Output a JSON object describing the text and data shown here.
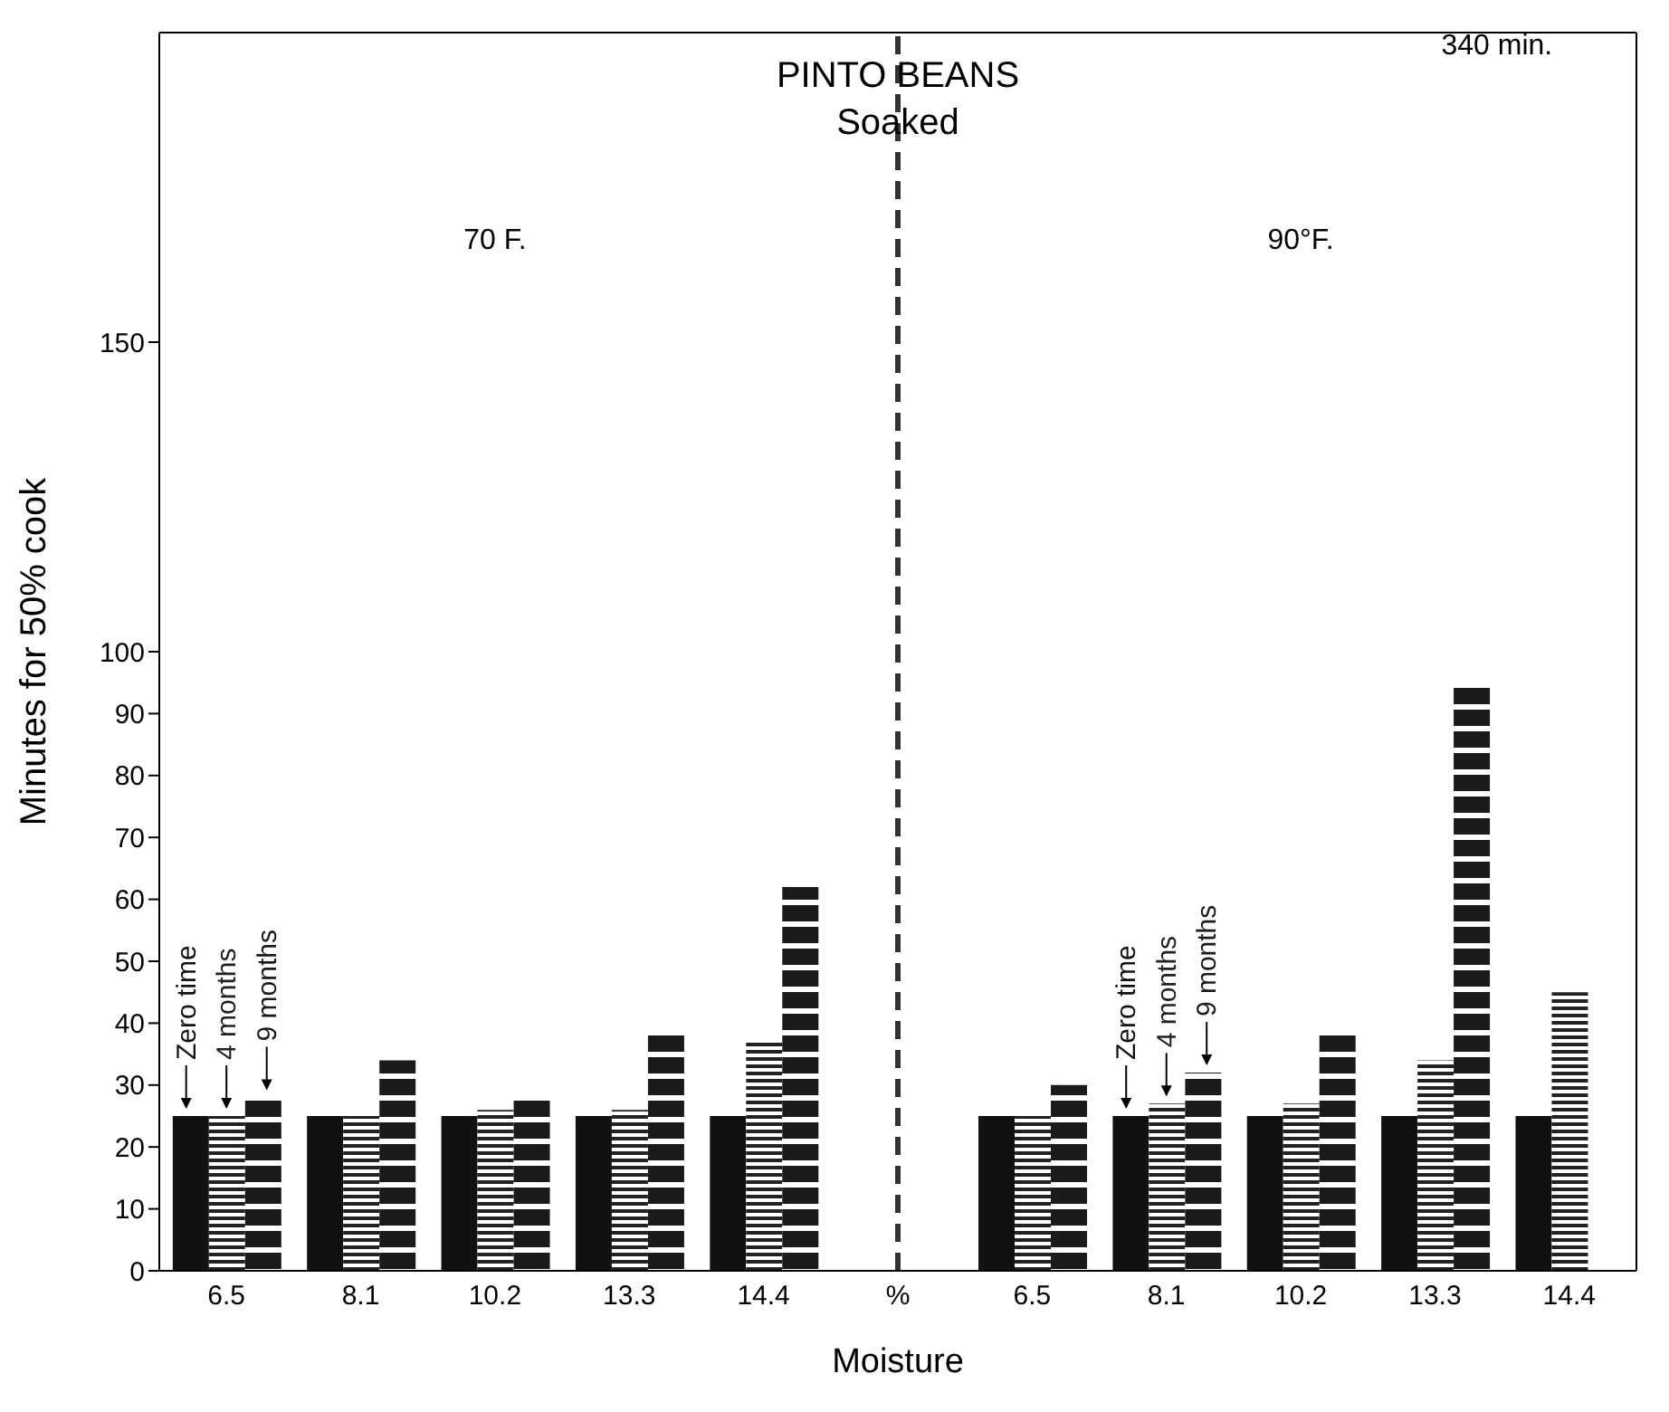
{
  "chart_data": {
    "type": "bar",
    "title": "PINTO BEANS",
    "subtitle": "Soaked",
    "xlabel": "Moisture",
    "ylabel": "Minutes for 50% cook",
    "categories": [
      "6.5",
      "8.1",
      "10.2",
      "13.3",
      "14.4",
      "%",
      "6.5",
      "8.1",
      "10.2",
      "13.3",
      "14.4"
    ],
    "series": [
      {
        "name": "Zero time",
        "color": "#111111",
        "values": [
          25,
          25,
          25,
          25,
          25,
          null,
          25,
          25,
          25,
          25,
          25
        ]
      },
      {
        "name": "4 months",
        "color": "#222222",
        "values": [
          25,
          25,
          26,
          26,
          37,
          null,
          25,
          27,
          27,
          34,
          45
        ]
      },
      {
        "name": "9 months",
        "color": "#1a1a1a",
        "values": [
          28,
          34,
          28,
          38,
          62,
          null,
          30,
          32,
          38,
          95,
          null
        ]
      }
    ],
    "ylim": [
      0,
      200
    ],
    "yticks": [
      0,
      10,
      20,
      30,
      40,
      50,
      60,
      70,
      80,
      90,
      100,
      150
    ],
    "ref_lines": [
      {
        "axis": "x",
        "value": "%",
        "line_style": "dashed",
        "color": "#333333"
      }
    ],
    "annotations": [
      "70 F.",
      "90°F.",
      "340 min."
    ]
  }
}
